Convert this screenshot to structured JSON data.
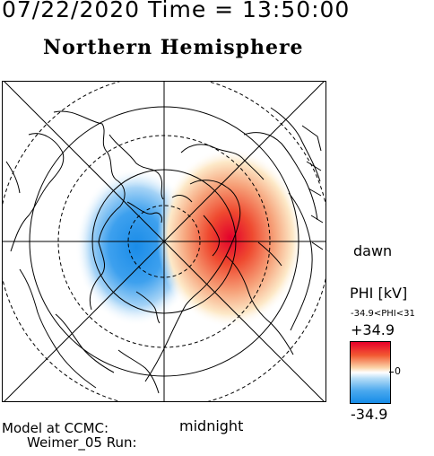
{
  "header": {
    "datetime": "07/22/2020 Time = 13:50:00",
    "hemisphere": "Northern Hemisphere"
  },
  "map": {
    "dawn_label": "dawn",
    "midnight_label": "midnight",
    "potential_cells": [
      {
        "type": "negative",
        "description_color": "#168ce8"
      },
      {
        "type": "positive",
        "description_color": "#e8002a"
      }
    ]
  },
  "colorbar": {
    "title": "PHI [kV]",
    "range_text": "-34.9<PHI<31",
    "max_label": "+34.9",
    "zero_label": "0",
    "min_label": "-34.9"
  },
  "footer": {
    "model_text": "Model at CCMC:",
    "run_text": "Weimer_05 Run:"
  }
}
